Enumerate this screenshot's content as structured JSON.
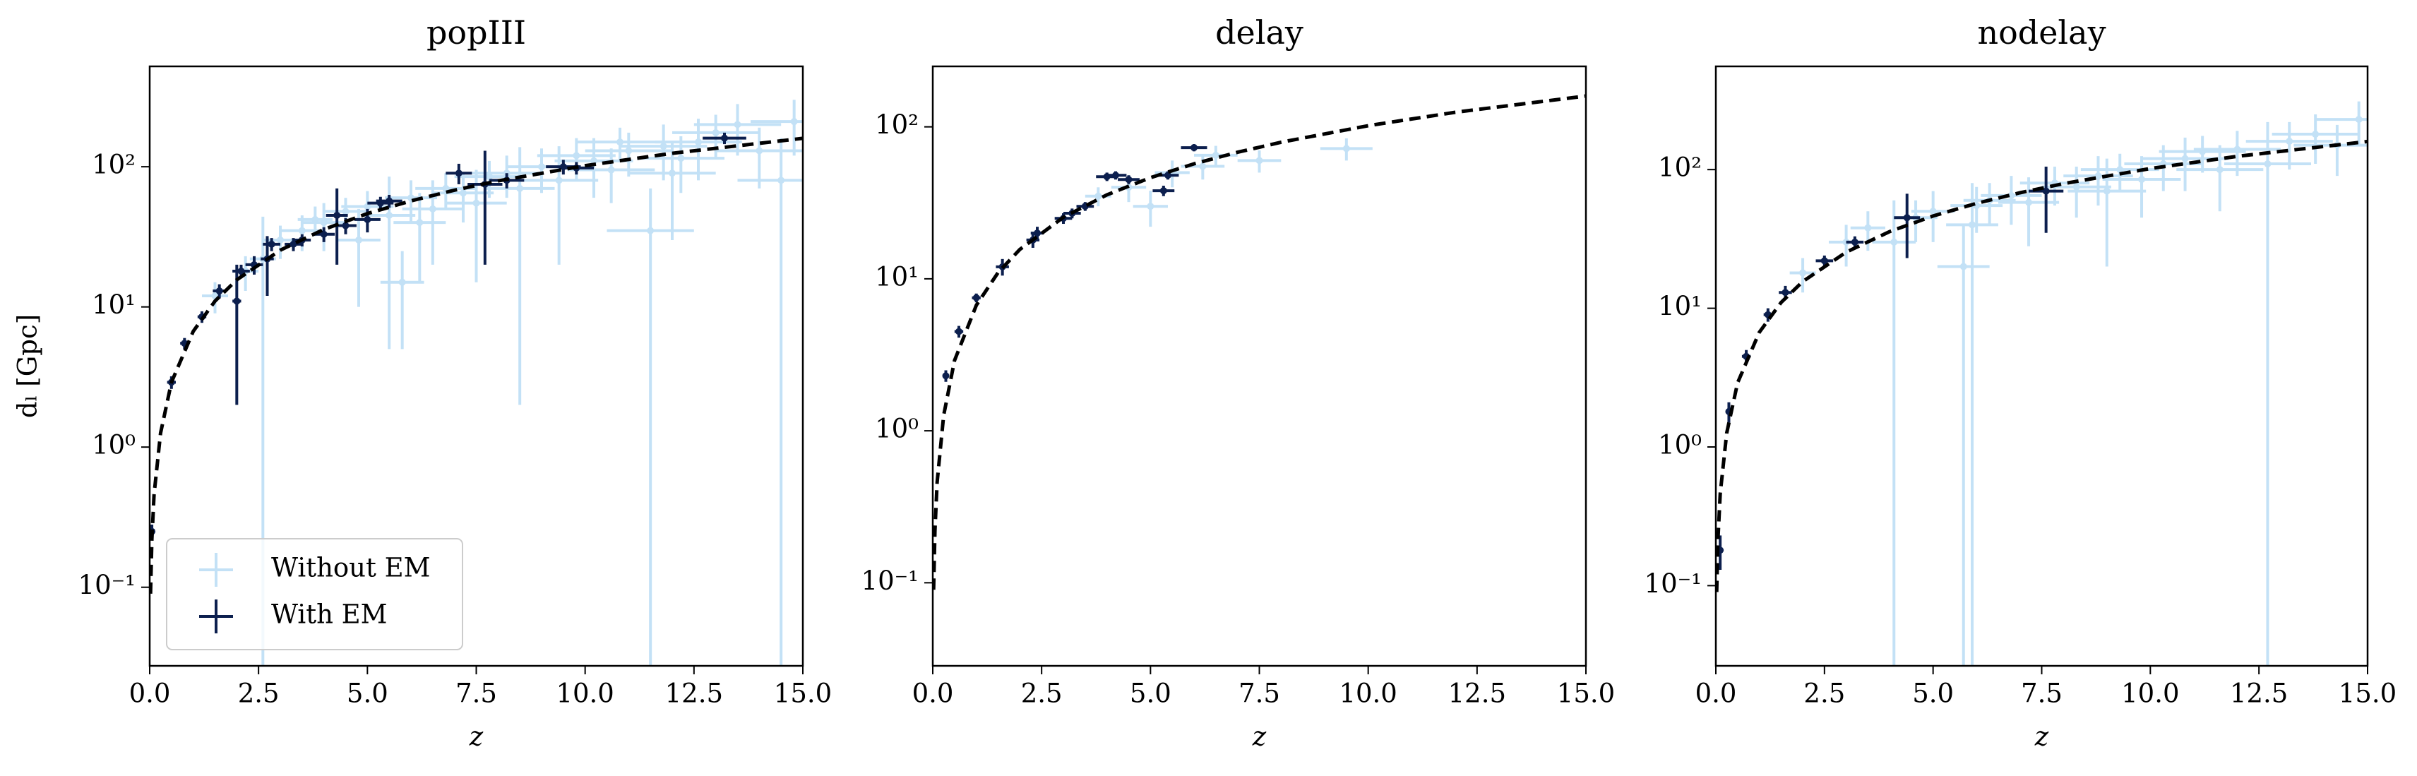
{
  "chart_data": [
    {
      "type": "errorbar",
      "title": "popIII",
      "xlabel": "z",
      "ylabel": "dₗ [Gpc]",
      "log_y": true,
      "legend": "lower left",
      "xlim": [
        0,
        15
      ],
      "ylim": [
        0.0275,
        520
      ],
      "xticks": [
        {
          "value": 0,
          "label": "0.0"
        },
        2.5,
        {
          "value": 5,
          "label": "5.0"
        },
        7.5,
        {
          "value": 10,
          "label": "10.0"
        },
        12.5,
        {
          "value": 15,
          "label": "15.0"
        }
      ],
      "yticks": [
        {
          "value": 0.1,
          "label": "10⁻¹"
        },
        {
          "value": 1,
          "label": "10⁰"
        },
        {
          "value": 10,
          "label": "10¹"
        },
        {
          "value": 100,
          "label": "10²"
        }
      ],
      "series": [
        {
          "name": "Without EM",
          "color": "#3b9fe3",
          "alpha": 0.3,
          "x": [
            1.5,
            2.2,
            2.6,
            3.0,
            3.5,
            4.0,
            4.5,
            5.0,
            5.5,
            6.0,
            6.5,
            6.8,
            7.2,
            7.8,
            8.2,
            8.5,
            9.0,
            9.4,
            9.8,
            10.2,
            10.6,
            11.0,
            11.5,
            11.8,
            12.2,
            12.6,
            13.0,
            13.5,
            14.0,
            14.5,
            14.8,
            5.8,
            4.8,
            3.8,
            6.2,
            7.5,
            10.8,
            12.0
          ],
          "values": [
            12,
            18,
            22,
            30,
            35,
            40,
            48,
            52,
            45,
            60,
            50,
            70,
            65,
            85,
            90,
            70,
            100,
            80,
            120,
            110,
            95,
            130,
            35,
            140,
            115,
            150,
            175,
            200,
            130,
            80,
            210,
            15,
            30,
            42,
            40,
            55,
            150,
            90
          ],
          "xerr": [
            0.3,
            0.3,
            0.3,
            0.4,
            0.5,
            0.5,
            0.5,
            0.6,
            0.6,
            0.6,
            0.7,
            0.7,
            0.7,
            0.8,
            0.8,
            0.8,
            0.8,
            0.9,
            0.9,
            0.9,
            1,
            1,
            1,
            1,
            1,
            1,
            1,
            1,
            1,
            1,
            1,
            0.5,
            0.5,
            0.4,
            0.6,
            0.7,
            1,
            1
          ],
          "yerr": [
            3,
            5,
            22,
            8,
            10,
            15,
            12,
            15,
            40,
            20,
            30,
            20,
            25,
            25,
            30,
            68,
            35,
            60,
            40,
            50,
            40,
            45,
            35,
            60,
            50,
            70,
            60,
            80,
            60,
            80,
            90,
            10,
            20,
            10,
            25,
            40,
            40,
            60
          ]
        },
        {
          "name": "With EM",
          "color": "#0c1f4e",
          "alpha": 1,
          "x": [
            0.05,
            0.5,
            0.8,
            1.2,
            1.6,
            2.0,
            2.1,
            2.4,
            2.7,
            2.8,
            3.3,
            3.5,
            4.0,
            4.3,
            4.5,
            5.0,
            5.3,
            5.5,
            7.1,
            7.7,
            8.2,
            9.5,
            9.8,
            13.2
          ],
          "values": [
            0.25,
            2.9,
            5.5,
            8.5,
            13,
            11,
            18,
            20,
            22,
            28,
            28,
            30,
            33,
            45,
            38,
            42,
            55,
            57,
            90,
            75,
            80,
            100,
            98,
            160
          ],
          "xerr": [
            0.03,
            0.1,
            0.1,
            0.1,
            0.15,
            0.1,
            0.2,
            0.2,
            0.15,
            0.2,
            0.2,
            0.2,
            0.25,
            0.25,
            0.25,
            0.3,
            0.3,
            0.3,
            0.3,
            0.4,
            0.4,
            0.4,
            0.4,
            0.5
          ],
          "yerr": [
            0.03,
            0.3,
            0.5,
            0.8,
            1.5,
            9,
            2,
            3,
            10,
            3,
            3,
            3,
            4,
            25,
            5,
            8,
            6,
            6,
            15,
            55,
            10,
            12,
            10,
            15
          ]
        }
      ],
      "curve": {
        "color": "#000000",
        "dashed": true,
        "x": [
          0.02,
          0.05,
          0.1,
          0.25,
          0.5,
          1,
          1.5,
          2,
          3,
          4,
          5,
          6,
          7,
          8,
          10,
          12,
          15
        ],
        "values": [
          0.09,
          0.22,
          0.46,
          1.26,
          2.9,
          6.7,
          11.0,
          15.6,
          25.4,
          35.7,
          46.3,
          57.1,
          68.1,
          79.2,
          101.8,
          124.7,
          159.5
        ]
      }
    },
    {
      "type": "errorbar",
      "title": "delay",
      "xlabel": "z",
      "log_y": true,
      "xlim": [
        0,
        15
      ],
      "ylim": [
        0.0284,
        250
      ],
      "xticks": [
        {
          "value": 0,
          "label": "0.0"
        },
        2.5,
        {
          "value": 5,
          "label": "5.0"
        },
        7.5,
        {
          "value": 10,
          "label": "10.0"
        },
        12.5,
        {
          "value": 15,
          "label": "15.0"
        }
      ],
      "yticks": [
        {
          "value": 0.1,
          "label": "10⁻¹"
        },
        {
          "value": 1,
          "label": "10⁰"
        },
        {
          "value": 10,
          "label": "10¹"
        },
        {
          "value": 100,
          "label": "10²"
        }
      ],
      "series": [
        {
          "name": "Without EM",
          "color": "#3b9fe3",
          "alpha": 0.3,
          "x": [
            3.8,
            4.5,
            5.0,
            5.5,
            6.2,
            7.5,
            9.5,
            6.5
          ],
          "values": [
            35,
            40,
            30,
            50,
            55,
            60,
            72,
            65
          ],
          "xerr": [
            0.3,
            0.4,
            0.4,
            0.4,
            0.5,
            0.5,
            0.6,
            0.5
          ],
          "yerr": [
            5,
            8,
            8,
            10,
            10,
            10,
            12,
            10
          ]
        },
        {
          "name": "With EM",
          "color": "#0c1f4e",
          "alpha": 1,
          "x": [
            0.3,
            0.6,
            1.0,
            1.6,
            2.3,
            2.4,
            3.0,
            3.2,
            3.5,
            4.0,
            4.2,
            4.5,
            5.3,
            5.4,
            6.0
          ],
          "values": [
            2.3,
            4.5,
            7.5,
            12,
            18,
            20,
            25,
            27,
            30,
            47,
            48,
            45,
            38,
            48,
            73
          ],
          "xerr": [
            0.05,
            0.1,
            0.1,
            0.15,
            0.15,
            0.15,
            0.2,
            0.2,
            0.2,
            0.25,
            0.25,
            0.25,
            0.25,
            0.25,
            0.3
          ],
          "yerr": [
            0.2,
            0.4,
            0.5,
            1.5,
            2,
            2,
            2,
            2,
            2,
            3,
            3,
            3,
            3,
            3,
            4
          ]
        }
      ],
      "curve": {
        "color": "#000000",
        "dashed": true,
        "x": [
          0.02,
          0.05,
          0.1,
          0.25,
          0.5,
          1,
          1.5,
          2,
          3,
          4,
          5,
          6,
          7,
          8,
          10,
          12,
          15
        ],
        "values": [
          0.09,
          0.22,
          0.46,
          1.26,
          2.9,
          6.7,
          11.0,
          15.6,
          25.4,
          35.7,
          46.3,
          57.1,
          68.1,
          79.2,
          101.8,
          124.7,
          159.5
        ]
      }
    },
    {
      "type": "errorbar",
      "title": "nodelay",
      "xlabel": "z",
      "log_y": true,
      "xlim": [
        0,
        15
      ],
      "ylim": [
        0.0264,
        555
      ],
      "xticks": [
        {
          "value": 0,
          "label": "0.0"
        },
        2.5,
        {
          "value": 5,
          "label": "5.0"
        },
        7.5,
        {
          "value": 10,
          "label": "10.0"
        },
        12.5,
        {
          "value": 15,
          "label": "15.0"
        }
      ],
      "yticks": [
        {
          "value": 0.1,
          "label": "10⁻¹"
        },
        {
          "value": 1,
          "label": "10⁰"
        },
        {
          "value": 10,
          "label": "10¹"
        },
        {
          "value": 100,
          "label": "10²"
        }
      ],
      "series": [
        {
          "name": "Without EM",
          "color": "#3b9fe3",
          "alpha": 0.3,
          "x": [
            2.0,
            3.0,
            3.5,
            4.1,
            4.6,
            5.0,
            5.7,
            5.9,
            6.3,
            6.8,
            7.2,
            7.8,
            8.3,
            8.8,
            9.3,
            9.8,
            10.3,
            10.8,
            11.2,
            11.6,
            12.0,
            12.7,
            13.2,
            13.8,
            14.3,
            14.8,
            6.0,
            9.0
          ],
          "values": [
            18,
            30,
            38,
            30,
            45,
            50,
            20,
            40,
            60,
            65,
            58,
            80,
            75,
            90,
            100,
            85,
            110,
            120,
            135,
            100,
            140,
            110,
            160,
            180,
            150,
            230,
            55,
            70
          ],
          "xerr": [
            0.3,
            0.4,
            0.4,
            0.5,
            0.5,
            0.5,
            0.6,
            0.6,
            0.6,
            0.7,
            0.7,
            0.8,
            0.8,
            0.8,
            0.9,
            0.9,
            0.9,
            1,
            1,
            1,
            1,
            1,
            1,
            1,
            1,
            1,
            0.6,
            0.9
          ],
          "yerr": [
            5,
            10,
            12,
            30,
            15,
            20,
            20,
            40,
            20,
            25,
            30,
            25,
            30,
            35,
            30,
            40,
            40,
            50,
            40,
            50,
            50,
            110,
            60,
            70,
            60,
            80,
            20,
            50
          ]
        },
        {
          "name": "With EM",
          "color": "#0c1f4e",
          "alpha": 1,
          "x": [
            0.1,
            0.3,
            0.7,
            1.2,
            1.6,
            2.5,
            3.2,
            4.4,
            7.6
          ],
          "values": [
            0.18,
            1.8,
            4.5,
            9,
            13,
            22,
            30,
            45,
            70
          ],
          "xerr": [
            0.02,
            0.05,
            0.1,
            0.1,
            0.15,
            0.2,
            0.2,
            0.3,
            0.4
          ],
          "yerr": [
            0.05,
            0.3,
            0.5,
            1,
            1.5,
            2,
            3,
            22,
            35
          ]
        }
      ],
      "curve": {
        "color": "#000000",
        "dashed": true,
        "x": [
          0.02,
          0.05,
          0.1,
          0.25,
          0.5,
          1,
          1.5,
          2,
          3,
          4,
          5,
          6,
          7,
          8,
          10,
          12,
          15
        ],
        "values": [
          0.09,
          0.22,
          0.46,
          1.26,
          2.9,
          6.7,
          11.0,
          15.6,
          25.4,
          35.7,
          46.3,
          57.1,
          68.1,
          79.2,
          101.8,
          124.7,
          159.5
        ]
      }
    }
  ]
}
